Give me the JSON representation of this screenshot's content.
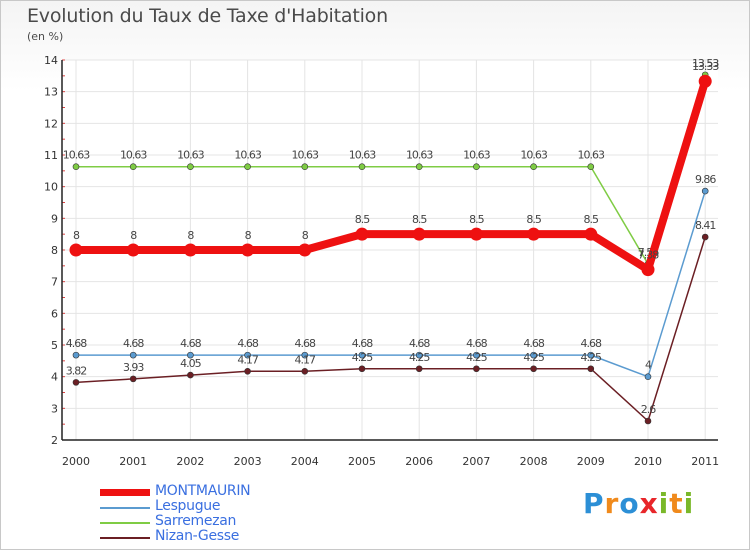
{
  "chart_data": {
    "type": "line",
    "title": "Evolution du Taux de Taxe d'Habitation",
    "subtitle": "(en %)",
    "xlabel": "",
    "ylabel": "",
    "categories": [
      "2000",
      "2001",
      "2002",
      "2003",
      "2004",
      "2005",
      "2006",
      "2007",
      "2008",
      "2009",
      "2010",
      "2011"
    ],
    "ylim": [
      2,
      14
    ],
    "yticks": [
      "2",
      "3",
      "4",
      "5",
      "6",
      "7",
      "8",
      "9",
      "10",
      "11",
      "12",
      "13",
      "14"
    ],
    "grid": true,
    "legend_placement": "bottom-left",
    "series": [
      {
        "name": "Sarremezan",
        "color": "#7fcc44",
        "values": [
          10.63,
          10.63,
          10.63,
          10.63,
          10.63,
          10.63,
          10.63,
          10.63,
          10.63,
          10.63,
          7.56,
          13.53
        ],
        "labels": [
          "10.63",
          "10.63",
          "10.63",
          "10.63",
          "10.63",
          "10.63",
          "10.63",
          "10.63",
          "10.63",
          "10.63",
          "7.56",
          "13.53"
        ]
      },
      {
        "name": "Lespugue",
        "color": "#5b9bd0",
        "values": [
          4.68,
          4.68,
          4.68,
          4.68,
          4.68,
          4.68,
          4.68,
          4.68,
          4.68,
          4.68,
          4,
          9.86
        ],
        "labels": [
          "4.68",
          "4.68",
          "4.68",
          "4.68",
          "4.68",
          "4.68",
          "4.68",
          "4.68",
          "4.68",
          "4.68",
          "4",
          "9.86"
        ]
      },
      {
        "name": "Nizan-Gesse",
        "color": "#6b1f24",
        "values": [
          3.82,
          3.93,
          4.05,
          4.17,
          4.17,
          4.25,
          4.25,
          4.25,
          4.25,
          4.25,
          2.6,
          8.41
        ],
        "labels": [
          "3.82",
          "3.93",
          "4.05",
          "4.17",
          "4.17",
          "4.25",
          "4.25",
          "4.25",
          "4.25",
          "4.25",
          "2.6",
          "8.41"
        ]
      },
      {
        "name": "MONTMAURIN",
        "color": "#ee1111",
        "values": [
          8,
          8,
          8,
          8,
          8,
          8.5,
          8.5,
          8.5,
          8.5,
          8.5,
          7.38,
          13.33
        ],
        "labels": [
          "8",
          "8",
          "8",
          "8",
          "8",
          "8.5",
          "8.5",
          "8.5",
          "8.5",
          "8.5",
          "7.38",
          "13.33"
        ]
      }
    ]
  },
  "legend": {
    "items": [
      {
        "name": "MONTMAURIN",
        "color": "#ee1111",
        "text_color": "#3a6fe0"
      },
      {
        "name": "Lespugue",
        "color": "#5b9bd0",
        "text_color": "#3a6fe0"
      },
      {
        "name": "Sarremezan",
        "color": "#7fcc44",
        "text_color": "#3a6fe0"
      },
      {
        "name": "Nizan-Gesse",
        "color": "#6b1f24",
        "text_color": "#3a6fe0"
      }
    ]
  },
  "brand": {
    "text": "Proxiti",
    "letter_colors": [
      "#2c8fd6",
      "#f08a1c",
      "#2c8fd6",
      "#e8262a",
      "#7ab829",
      "#f08a1c",
      "#7ab829"
    ]
  }
}
